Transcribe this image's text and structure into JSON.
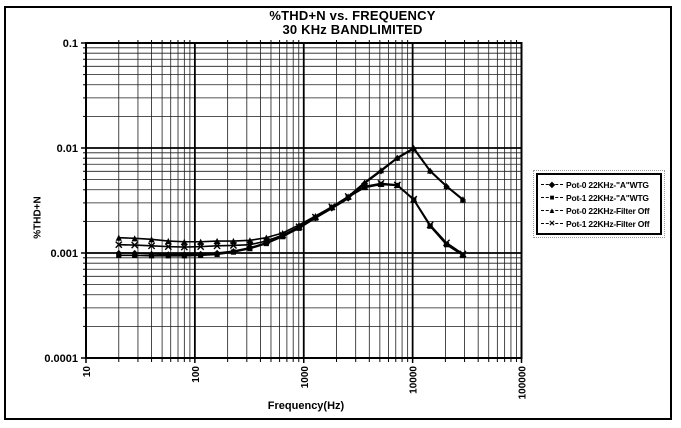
{
  "accent_color": "#000000",
  "background_color": "#ffffff",
  "chart_data": {
    "type": "line",
    "title": "%THD+N vs. FREQUENCY",
    "subtitle": "30 KHz BANDLIMITED",
    "xlabel": "Frequency(Hz)",
    "ylabel": "%THD+N",
    "x_scale": "log",
    "y_scale": "log",
    "xlim": [
      10,
      100000
    ],
    "ylim": [
      0.0001,
      0.1
    ],
    "x_ticks": [
      {
        "value": 10,
        "label": "10"
      },
      {
        "value": 100,
        "label": "100"
      },
      {
        "value": 1000,
        "label": "1000"
      },
      {
        "value": 10000,
        "label": "10000"
      },
      {
        "value": 100000,
        "label": "100000"
      }
    ],
    "y_ticks": [
      {
        "value": 0.1,
        "label": "0.1"
      },
      {
        "value": 0.01,
        "label": "0.01"
      },
      {
        "value": 0.001,
        "label": "0.001"
      },
      {
        "value": 0.0001,
        "label": "0.0001"
      }
    ],
    "grid": "full log grid, major and minor lines, both axes",
    "legend_position": "right-outside",
    "line_color": "#000000",
    "x": [
      20,
      28,
      40,
      57,
      80,
      113,
      160,
      226,
      320,
      453,
      640,
      905,
      1280,
      1810,
      2560,
      3620,
      5120,
      7240,
      10240,
      14480,
      20480,
      28960
    ],
    "series": [
      {
        "name": "Pot-0 22KHz-\"A\"WTG",
        "marker": "diamond",
        "glyph": "◆",
        "values": [
          0.001,
          0.001,
          0.00098,
          0.00097,
          0.00097,
          0.00098,
          0.001,
          0.00104,
          0.00112,
          0.00125,
          0.00145,
          0.00175,
          0.00215,
          0.00265,
          0.0033,
          0.0046,
          0.006,
          0.008,
          0.0098,
          0.006,
          0.0043,
          0.0032
        ]
      },
      {
        "name": "Pot-1 22KHz-\"A\"WTG",
        "marker": "square",
        "glyph": "■",
        "values": [
          0.00095,
          0.00095,
          0.00094,
          0.00094,
          0.00094,
          0.00095,
          0.00097,
          0.00102,
          0.0011,
          0.00123,
          0.00143,
          0.00172,
          0.00215,
          0.0027,
          0.0034,
          0.0042,
          0.0045,
          0.0044,
          0.0032,
          0.0018,
          0.0012,
          0.00095
        ]
      },
      {
        "name": "Pot-0 22KHz-Filter Off",
        "marker": "triangle",
        "glyph": "▲",
        "values": [
          0.0014,
          0.00138,
          0.00135,
          0.0013,
          0.00128,
          0.00128,
          0.0013,
          0.0013,
          0.00132,
          0.0014,
          0.00155,
          0.00185,
          0.00225,
          0.00275,
          0.00345,
          0.0047,
          0.00615,
          0.0081,
          0.01,
          0.0061,
          0.00435,
          0.00325
        ]
      },
      {
        "name": "Pot-1 22KHz-Filter Off",
        "marker": "x",
        "glyph": "✕",
        "values": [
          0.0012,
          0.00119,
          0.00117,
          0.00115,
          0.00114,
          0.00115,
          0.00117,
          0.00118,
          0.0012,
          0.0013,
          0.00148,
          0.00178,
          0.0022,
          0.00275,
          0.00345,
          0.0043,
          0.0046,
          0.00445,
          0.00325,
          0.00185,
          0.00125,
          0.00098
        ]
      }
    ]
  }
}
